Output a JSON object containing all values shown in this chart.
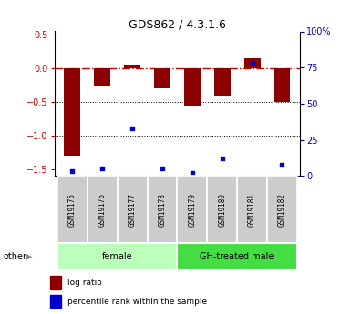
{
  "title": "GDS862 / 4.3.1.6",
  "samples": [
    "GSM19175",
    "GSM19176",
    "GSM19177",
    "GSM19178",
    "GSM19179",
    "GSM19180",
    "GSM19181",
    "GSM19182"
  ],
  "log_ratio": [
    -1.3,
    -0.25,
    0.05,
    -0.3,
    -0.55,
    -0.4,
    0.15,
    -0.5
  ],
  "percentile_rank": [
    3,
    5,
    33,
    5,
    2,
    12,
    78,
    8
  ],
  "groups": [
    {
      "label": "female",
      "start": 0,
      "end": 4,
      "color": "#bbffbb"
    },
    {
      "label": "GH-treated male",
      "start": 4,
      "end": 8,
      "color": "#44dd44"
    }
  ],
  "bar_color": "#8b0000",
  "dot_color": "#0000cc",
  "ylim_left": [
    -1.6,
    0.55
  ],
  "ylim_right": [
    0,
    100
  ],
  "yticks_left": [
    -1.5,
    -1.0,
    -0.5,
    0.0,
    0.5
  ],
  "yticks_right": [
    0,
    25,
    50,
    75,
    100
  ],
  "hline_zero_color": "#cc0000",
  "hline_dotted_color": "black",
  "background_color": "#ffffff",
  "other_label": "other",
  "legend_items": [
    {
      "label": "log ratio",
      "color": "#8b0000"
    },
    {
      "label": "percentile rank within the sample",
      "color": "#0000cc"
    }
  ]
}
